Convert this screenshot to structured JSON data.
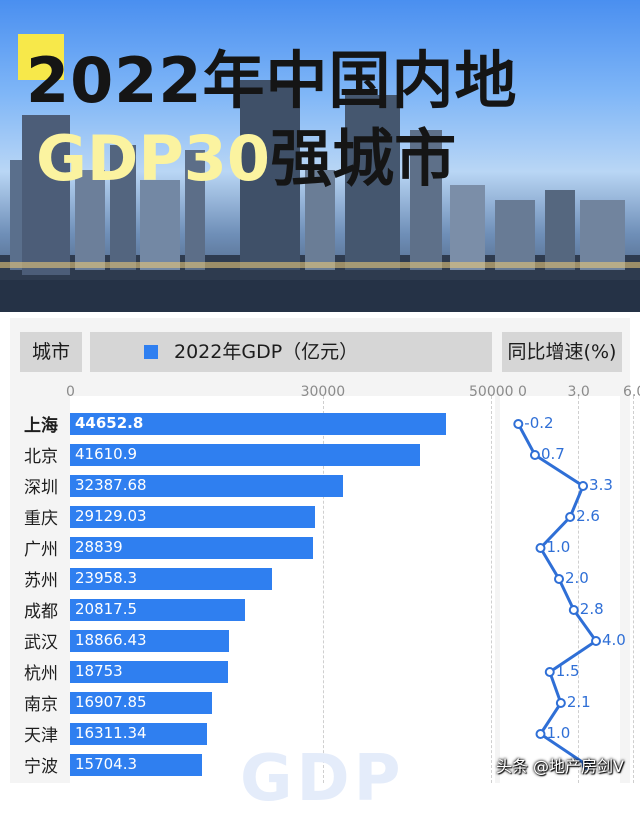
{
  "title": {
    "line1": "2022年中国内地",
    "line2_highlight": "GDP30",
    "line2_rest": "强城市"
  },
  "headers": {
    "city": "城市",
    "gdp": "2022年GDP（亿元）",
    "growth": "同比增速(%)"
  },
  "credit": "头条 @地产房剑V",
  "watermark": "GDP",
  "colors": {
    "bar": "#2f7ff0",
    "accent": "#f7e84a",
    "growth_line": "#2f6fd6"
  },
  "chart_data": [
    {
      "type": "bar",
      "orientation": "horizontal",
      "series_label": "2022年GDP（亿元）",
      "x_ticks": [
        "0",
        "30000",
        "50000"
      ],
      "grid": true,
      "categories": [
        "上海",
        "北京",
        "深圳",
        "重庆",
        "广州",
        "苏州",
        "成都",
        "武汉",
        "杭州",
        "南京",
        "天津",
        "宁波"
      ],
      "values": [
        44652.8,
        41610.9,
        32387.68,
        29129.03,
        28839,
        23958.3,
        20817.5,
        18866.43,
        18753,
        16907.85,
        16311.34,
        15704.3
      ],
      "value_labels": [
        "44652.8",
        "41610.9",
        "32387.68",
        "29129.03",
        "28839",
        "23958.3",
        "20817.5",
        "18866.43",
        "18753",
        "16907.85",
        "16311.34",
        "15704.3"
      ]
    },
    {
      "type": "line",
      "series_label": "同比增速(%)",
      "x_ticks": [
        "0",
        "3.0",
        "6.0"
      ],
      "xlim": [
        0,
        6
      ],
      "categories": [
        "上海",
        "北京",
        "深圳",
        "重庆",
        "广州",
        "苏州",
        "成都",
        "武汉",
        "杭州",
        "南京",
        "天津",
        "宁波"
      ],
      "values": [
        -0.2,
        0.7,
        3.3,
        2.6,
        1.0,
        2.0,
        2.8,
        4.0,
        1.5,
        2.1,
        1.0,
        3.5
      ],
      "value_labels": [
        "-0.2",
        "0.7",
        "3.3",
        "2.6",
        "1.0",
        "2.0",
        "2.8",
        "4.0",
        "1.5",
        "2.1",
        "1.0",
        ""
      ]
    }
  ]
}
